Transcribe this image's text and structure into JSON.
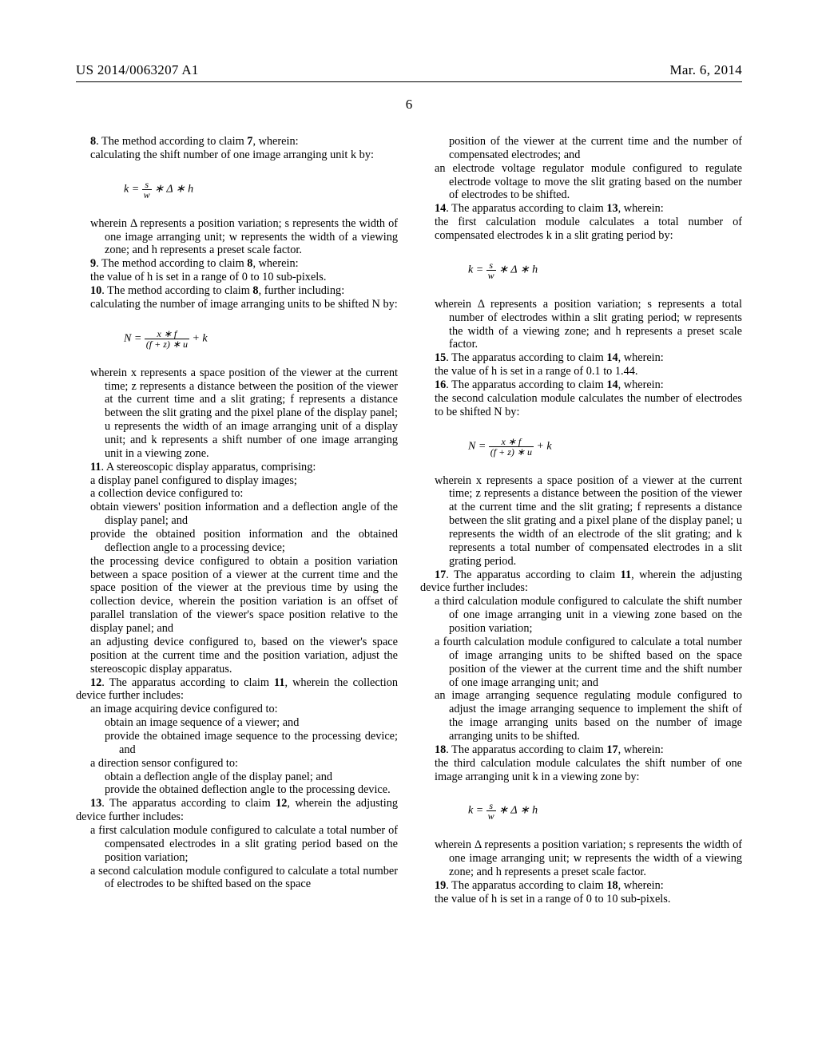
{
  "header": {
    "pub_number": "US 2014/0063207 A1",
    "pub_date": "Mar. 6, 2014"
  },
  "page_number": "6",
  "claims": {
    "c8_intro": "8",
    "c8_text": ". The method according to claim ",
    "c8_ref": "7",
    "c8_tail": ", wherein:",
    "c8_line1": "calculating the shift number of one image arranging unit k by:",
    "c8_wherein": "wherein Δ represents a position variation; s represents the width of one image arranging unit; w represents the width of a viewing zone; and h represents a preset scale factor.",
    "c9_intro": "9",
    "c9_text": ". The method according to claim ",
    "c9_ref": "8",
    "c9_tail": ", wherein:",
    "c9_line1": "the value of h is set in a range of 0 to 10 sub-pixels.",
    "c10_intro": "10",
    "c10_text": ". The method according to claim ",
    "c10_ref": "8",
    "c10_tail": ", further including:",
    "c10_line1": "calculating the number of image arranging units to be shifted N by:",
    "c10_wherein": "wherein x represents a space position of the viewer at the current time; z represents a distance between the position of the viewer at the current time and a slit grating; f represents a distance between the slit grating and the pixel plane of the display panel; u represents the width of an image arranging unit of a display unit; and k represents a shift number of one image arranging unit in a viewing zone.",
    "c11_intro": "11",
    "c11_text": ". A stereoscopic display apparatus, comprising:",
    "c11_a": "a display panel configured to display images;",
    "c11_b": "a collection device configured to:",
    "c11_b1": "obtain viewers' position information and a deflection angle of the display panel; and",
    "c11_b2": "provide the obtained position information and the obtained deflection angle to a processing device;",
    "c11_c": "the processing device configured to obtain a position variation between a space position of a viewer at the current time and the space position of the viewer at the previous time by using the collection device, wherein the position variation is an offset of parallel translation of the viewer's space position relative to the display panel; and",
    "c11_d": "an adjusting device configured to, based on the viewer's space position at the current time and the position variation, adjust the stereoscopic display apparatus.",
    "c12_intro": "12",
    "c12_text": ". The apparatus according to claim ",
    "c12_ref": "11",
    "c12_tail": ", wherein the collection device further includes:",
    "c12_a": "an image acquiring device configured to:",
    "c12_a1": "obtain an image sequence of a viewer; and",
    "c12_a2": "provide the obtained image sequence to the processing device; and",
    "c12_b": "a direction sensor configured to:",
    "c12_b1": "obtain a deflection angle of the display panel; and",
    "c12_b2": "provide the obtained deflection angle to the processing device.",
    "c13_intro": "13",
    "c13_text": ". The apparatus according to claim ",
    "c13_ref": "12",
    "c13_tail": ", wherein the adjusting device further includes:",
    "c13_a": "a first calculation module configured to calculate a total number of compensated electrodes in a slit grating period based on the position variation;",
    "c13_b": "a second calculation module configured to calculate a total number of electrodes to be shifted based on the space",
    "c13_b_cont": "position of the viewer at the current time and the number of compensated electrodes; and",
    "c13_c": "an electrode voltage regulator module configured to regulate electrode voltage to move the slit grating based on the number of electrodes to be shifted.",
    "c14_intro": "14",
    "c14_text": ". The apparatus according to claim ",
    "c14_ref": "13",
    "c14_tail": ", wherein:",
    "c14_a": "the first calculation module calculates a total number of compensated electrodes k in a slit grating period by:",
    "c14_wherein": "wherein Δ represents a position variation; s represents a total number of electrodes within a slit grating period; w represents the width of a viewing zone; and h represents a preset scale factor.",
    "c15_intro": "15",
    "c15_text": ". The apparatus according to claim ",
    "c15_ref": "14",
    "c15_tail": ", wherein:",
    "c15_a": "the value of h is set in a range of 0.1 to 1.44.",
    "c16_intro": "16",
    "c16_text": ". The apparatus according to claim ",
    "c16_ref": "14",
    "c16_tail": ", wherein:",
    "c16_a": "the second calculation module calculates the number of electrodes to be shifted N by:",
    "c16_wherein": "wherein x represents a space position of a viewer at the current time; z represents a distance between the position of the viewer at the current time and the slit grating; f represents a distance between the slit grating and a pixel plane of the display panel; u represents the width of an electrode of the slit grating; and k represents a total number of compensated electrodes in a slit grating period.",
    "c17_intro": "17",
    "c17_text": ". The apparatus according to claim ",
    "c17_ref": "11",
    "c17_tail": ", wherein the adjusting device further includes:",
    "c17_a": "a third calculation module configured to calculate the shift number of one image arranging unit in a viewing zone based on the position variation;",
    "c17_b": "a fourth calculation module configured to calculate a total number of image arranging units to be shifted based on the space position of the viewer at the current time and the shift number of one image arranging unit; and",
    "c17_c": "an image arranging sequence regulating module configured to adjust the image arranging sequence to implement the shift of the image arranging units based on the number of image arranging units to be shifted.",
    "c18_intro": "18",
    "c18_text": ". The apparatus according to claim ",
    "c18_ref": "17",
    "c18_tail": ", wherein:",
    "c18_a": "the third calculation module calculates the shift number of one image arranging unit k in a viewing zone by:",
    "c18_wherein": "wherein Δ represents a position variation; s represents the width of one image arranging unit; w represents the width of a viewing zone; and h represents a preset scale factor.",
    "c19_intro": "19",
    "c19_text": ". The apparatus according to claim ",
    "c19_ref": "18",
    "c19_tail": ", wherein:",
    "c19_a": "the value of h is set in a range of 0 to 10 sub-pixels."
  },
  "formulas": {
    "k_num": "s",
    "k_den": "w",
    "k_rest": " ∗ Δ ∗ h",
    "k_lhs": "k = ",
    "N_lhs": "N = ",
    "N_num": "x ∗ f",
    "N_den": "(f + z) ∗ u",
    "N_rest": " + k"
  }
}
